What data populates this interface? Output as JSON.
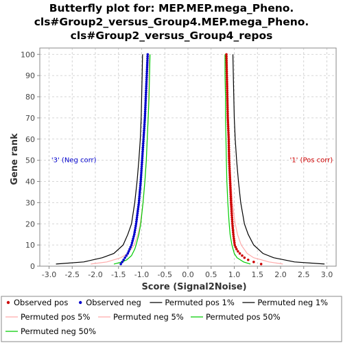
{
  "chart_data": {
    "type": "line",
    "title_lines": [
      "Butterfly plot for: MEP.MEP.mega_Pheno.",
      "cls#Group2_versus_Group4.MEP.mega_Pheno.",
      "cls#Group2_versus_Group4_repos"
    ],
    "xlabel": "Score (Signal2Noise)",
    "ylabel": "Gene rank",
    "xlim": [
      -3.2,
      3.2
    ],
    "ylim": [
      0,
      103
    ],
    "xticks": [
      "-3.0",
      "-2.5",
      "-2.0",
      "-1.5",
      "-1.0",
      "-0.5",
      "0.0",
      "0.5",
      "1.0",
      "1.5",
      "2.0",
      "2.5",
      "3.0"
    ],
    "xtick_values": [
      -3.0,
      -2.5,
      -2.0,
      -1.5,
      -1.0,
      -0.5,
      0.0,
      0.5,
      1.0,
      1.5,
      2.0,
      2.5,
      3.0
    ],
    "yticks": [
      "0",
      "10",
      "20",
      "30",
      "40",
      "50",
      "60",
      "70",
      "80",
      "90",
      "100"
    ],
    "ytick_values": [
      0,
      10,
      20,
      30,
      40,
      50,
      60,
      70,
      80,
      90,
      100
    ],
    "grid": true,
    "annotations": [
      {
        "text": "'3' (Neg corr)",
        "x": -2.95,
        "y": 49,
        "color": "#0000cc"
      },
      {
        "text": "'1' (Pos corr)",
        "x": 2.2,
        "y": 49,
        "color": "#cc0000"
      }
    ],
    "series": [
      {
        "name": "Observed pos",
        "kind": "points",
        "color": "#cc0000",
        "ranks": [
          1,
          2,
          3,
          4,
          5,
          6,
          7,
          8,
          10,
          15,
          20,
          30,
          40,
          50,
          60,
          70,
          80,
          90,
          100
        ],
        "scores": [
          1.58,
          1.42,
          1.3,
          1.22,
          1.17,
          1.12,
          1.08,
          1.05,
          1.01,
          0.98,
          0.96,
          0.93,
          0.91,
          0.89,
          0.88,
          0.86,
          0.85,
          0.84,
          0.83
        ]
      },
      {
        "name": "Observed neg",
        "kind": "points",
        "color": "#0000cc",
        "ranks": [
          1,
          2,
          3,
          4,
          5,
          6,
          8,
          10,
          15,
          20,
          30,
          40,
          50,
          60,
          70,
          80,
          90,
          100
        ],
        "scores": [
          -1.45,
          -1.42,
          -1.39,
          -1.36,
          -1.33,
          -1.3,
          -1.26,
          -1.22,
          -1.16,
          -1.12,
          -1.06,
          -1.02,
          -0.99,
          -0.96,
          -0.93,
          -0.91,
          -0.89,
          -0.87
        ]
      },
      {
        "name": "Permuted pos 1%",
        "kind": "line",
        "color": "#000000",
        "ranks": [
          1,
          2,
          4,
          6,
          10,
          15,
          20,
          30,
          40,
          50,
          60,
          70,
          80,
          90,
          100
        ],
        "scores": [
          2.95,
          2.3,
          1.85,
          1.62,
          1.42,
          1.3,
          1.22,
          1.14,
          1.09,
          1.05,
          1.02,
          1.0,
          0.99,
          0.98,
          0.97
        ]
      },
      {
        "name": "Permuted neg 1%",
        "kind": "line",
        "color": "#000000",
        "ranks": [
          1,
          2,
          4,
          6,
          10,
          15,
          20,
          30,
          40,
          50,
          60,
          70,
          80,
          90,
          100
        ],
        "scores": [
          -2.85,
          -2.25,
          -1.85,
          -1.6,
          -1.4,
          -1.3,
          -1.22,
          -1.15,
          -1.1,
          -1.06,
          -1.03,
          -1.01,
          -1.0,
          -0.99,
          -0.98
        ]
      },
      {
        "name": "Permuted pos 5%",
        "kind": "line",
        "color": "#ffaaaa",
        "ranks": [
          1,
          2,
          4,
          6,
          10,
          15,
          20,
          30,
          40,
          50,
          60,
          70,
          80,
          90,
          100
        ],
        "scores": [
          2.05,
          1.75,
          1.42,
          1.28,
          1.15,
          1.07,
          1.02,
          0.96,
          0.93,
          0.9,
          0.88,
          0.87,
          0.86,
          0.85,
          0.84
        ]
      },
      {
        "name": "Permuted neg 5%",
        "kind": "line",
        "color": "#ffaaaa",
        "ranks": [
          1,
          2,
          4,
          6,
          10,
          15,
          20,
          30,
          40,
          50,
          60,
          70,
          80,
          90,
          100
        ],
        "scores": [
          -2.1,
          -1.75,
          -1.45,
          -1.3,
          -1.16,
          -1.08,
          -1.03,
          -0.97,
          -0.93,
          -0.9,
          -0.88,
          -0.86,
          -0.85,
          -0.84,
          -0.83
        ]
      },
      {
        "name": "Permuted pos 50%",
        "kind": "line",
        "color": "#00cc00",
        "ranks": [
          1,
          2,
          4,
          6,
          10,
          15,
          20,
          30,
          40,
          50,
          60,
          70,
          80,
          90,
          100
        ],
        "scores": [
          1.35,
          1.2,
          1.06,
          1.0,
          0.95,
          0.91,
          0.89,
          0.86,
          0.84,
          0.83,
          0.82,
          0.81,
          0.81,
          0.8,
          0.8
        ]
      },
      {
        "name": "Permuted neg 50%",
        "kind": "line",
        "color": "#00cc00",
        "ranks": [
          1,
          2,
          3,
          5,
          8,
          10,
          15,
          20,
          30,
          40,
          50,
          60,
          70,
          80,
          90,
          100
        ],
        "scores": [
          -1.6,
          -1.42,
          -1.32,
          -1.22,
          -1.15,
          -1.12,
          -1.06,
          -1.02,
          -0.97,
          -0.93,
          -0.9,
          -0.88,
          -0.86,
          -0.84,
          -0.83,
          -0.82
        ]
      }
    ],
    "legend": {
      "position": "bottom",
      "entries": [
        {
          "label": "Observed pos",
          "marker": "dot",
          "color": "#cc0000"
        },
        {
          "label": "Observed neg",
          "marker": "dot",
          "color": "#0000cc"
        },
        {
          "label": "Permuted pos 1%",
          "marker": "line",
          "color": "#000000"
        },
        {
          "label": "Permuted neg 1%",
          "marker": "line",
          "color": "#000000"
        },
        {
          "label": "Permuted pos 5%",
          "marker": "line",
          "color": "#ffaaaa"
        },
        {
          "label": "Permuted neg 5%",
          "marker": "line",
          "color": "#ffaaaa"
        },
        {
          "label": "Permuted pos 50%",
          "marker": "line",
          "color": "#00cc00"
        },
        {
          "label": "Permuted neg 50%",
          "marker": "line",
          "color": "#00cc00"
        }
      ]
    }
  }
}
